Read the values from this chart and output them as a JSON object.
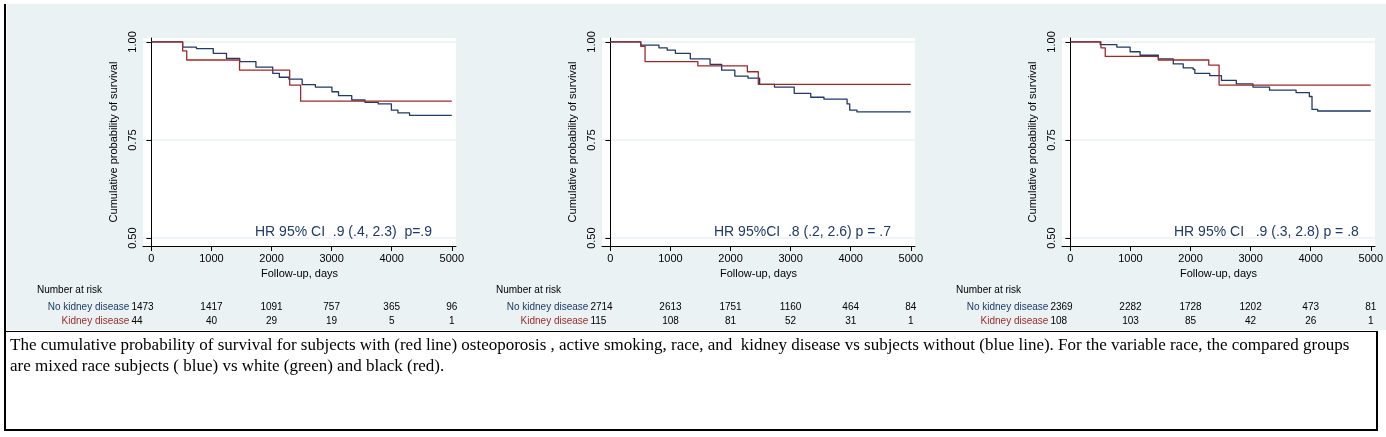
{
  "chart_data": [
    {
      "type": "step",
      "xlabel": "Follow-up, days",
      "ylabel": "Cumulative probability of survival",
      "xlim": [
        -140,
        5070
      ],
      "ylim": [
        0.48,
        1.01
      ],
      "xticks": [
        0,
        1000,
        2000,
        3000,
        4000,
        5000
      ],
      "yticks": [
        {
          "value": 0.5,
          "label": "0.50"
        },
        {
          "value": 0.75,
          "label": "0.75"
        },
        {
          "value": 1,
          "label": "1.00"
        }
      ],
      "grid": "y",
      "series": [
        {
          "name": "No kidney disease",
          "color": "#1f3b66",
          "x": [
            0,
            520,
            750,
            1030,
            1250,
            1470,
            1740,
            2020,
            2130,
            2290,
            2510,
            2730,
            3005,
            3115,
            3335,
            3555,
            3775,
            3995,
            4104,
            4297,
            5000
          ],
          "values": [
            1,
            0.987,
            0.983,
            0.971,
            0.958,
            0.95,
            0.936,
            0.92,
            0.91,
            0.905,
            0.891,
            0.885,
            0.873,
            0.863,
            0.852,
            0.846,
            0.842,
            0.826,
            0.819,
            0.813,
            0.813
          ]
        },
        {
          "name": "Kidney disease",
          "color": "#9b2a2a",
          "x": [
            0,
            520,
            588,
            1467,
            2302,
            2484,
            5000
          ],
          "values": [
            1,
            0.977,
            0.954,
            0.928,
            0.89,
            0.849,
            0.849
          ]
        }
      ],
      "annotations": [
        "HR 95% CI  .9 (.4, 2.3)  p=.9",
        "Number at risk",
        "1473",
        "1417",
        "1091",
        "757",
        "365",
        "96",
        "44",
        "40",
        "29",
        "19",
        "5",
        "1"
      ]
    },
    {
      "type": "step",
      "xlabel": "Follow-up, days",
      "ylabel": "Cumulative probability of survival",
      "xlim": [
        -140,
        5070
      ],
      "ylim": [
        0.48,
        1.01
      ],
      "xticks": [
        0,
        1000,
        2000,
        3000,
        4000,
        5000
      ],
      "yticks": [
        {
          "value": 0.5,
          "label": "0.50"
        },
        {
          "value": 0.75,
          "label": "0.75"
        },
        {
          "value": 1,
          "label": "1.00"
        }
      ],
      "grid": "y",
      "series": [
        {
          "name": "No kidney disease",
          "color": "#1f3b66",
          "x": [
            0,
            505,
            808,
            945,
            1082,
            1330,
            1659,
            1852,
            2071,
            2291,
            2484,
            2731,
            3060,
            3335,
            3555,
            3940,
            3984,
            4104,
            5000
          ],
          "values": [
            1,
            0.992,
            0.985,
            0.979,
            0.971,
            0.957,
            0.943,
            0.928,
            0.913,
            0.908,
            0.892,
            0.885,
            0.869,
            0.859,
            0.854,
            0.842,
            0.826,
            0.822,
            0.822
          ]
        },
        {
          "name": "Kidney disease",
          "color": "#9b2a2a",
          "x": [
            0,
            505,
            577,
            1456,
            2280,
            2462,
            5000
          ],
          "values": [
            1,
            0.989,
            0.95,
            0.939,
            0.924,
            0.892,
            0.892
          ]
        }
      ],
      "annotations": [
        "HR 95%CI  .8 (.2, 2.6) p = .7",
        "Number at risk",
        "2714",
        "2613",
        "1751",
        "1160",
        "464",
        "84",
        "115",
        "108",
        "81",
        "52",
        "31",
        "1"
      ]
    },
    {
      "type": "step",
      "xlabel": "Follow-up, days",
      "ylabel": "Cumulative probability of survival",
      "xlim": [
        -140,
        5070
      ],
      "ylim": [
        0.48,
        1.01
      ],
      "xticks": [
        0,
        1000,
        2000,
        3000,
        4000,
        5000
      ],
      "yticks": [
        {
          "value": 0.5,
          "label": "0.50"
        },
        {
          "value": 0.75,
          "label": "0.75"
        },
        {
          "value": 1,
          "label": "1.00"
        }
      ],
      "grid": "y",
      "series": [
        {
          "name": "No kidney disease",
          "color": "#1f3b66",
          "x": [
            0,
            497,
            773,
            994,
            1160,
            1464,
            1713,
            1878,
            2044,
            2071,
            2320,
            2514,
            2762,
            3039,
            3315,
            3757,
            3978,
            4022,
            4116,
            5000
          ],
          "values": [
            1,
            0.993,
            0.987,
            0.975,
            0.966,
            0.957,
            0.944,
            0.934,
            0.93,
            0.92,
            0.914,
            0.902,
            0.893,
            0.885,
            0.877,
            0.871,
            0.861,
            0.828,
            0.824,
            0.824
          ]
        },
        {
          "name": "Kidney disease",
          "color": "#9b2a2a",
          "x": [
            0,
            508,
            580,
            1463,
            2303,
            2475,
            5000
          ],
          "values": [
            1,
            0.985,
            0.963,
            0.954,
            0.941,
            0.89,
            0.89
          ]
        }
      ],
      "annotations": [
        "HR 95% CI   .9 (.3, 2.8) p = .8",
        "Number at risk",
        "2369",
        "2282",
        "1728",
        "1202",
        "473",
        "81",
        "108",
        "103",
        "85",
        "42",
        "26",
        "1"
      ]
    },
    {
      "type": "other",
      "annotations": [
        "The cumulative probability of survival for subjects with (red line) osteoporosis , active smoking, race, and  kidney disease vs subjects without (blue line). For the variable race, the compared groups are mixed race subjects ( blue) vs white (green) and black (red)."
      ]
    }
  ]
}
